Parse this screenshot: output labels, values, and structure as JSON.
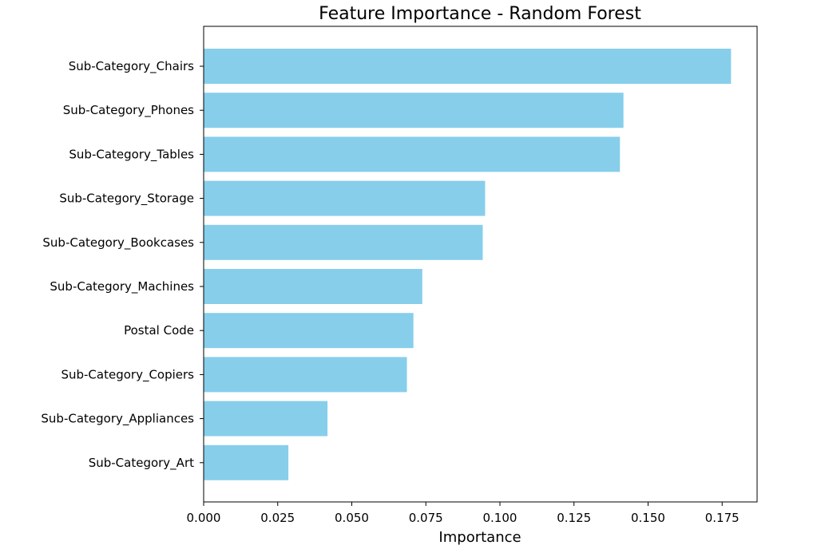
{
  "chart_data": {
    "type": "bar",
    "orientation": "horizontal",
    "title": "Feature Importance - Random Forest",
    "xlabel": "Importance",
    "ylabel": "",
    "xlim": [
      0,
      0.1868
    ],
    "xticks": [
      0.0,
      0.025,
      0.05,
      0.075,
      0.1,
      0.125,
      0.15,
      0.175
    ],
    "xtick_labels": [
      "0.000",
      "0.025",
      "0.050",
      "0.075",
      "0.100",
      "0.125",
      "0.150",
      "0.175"
    ],
    "categories": [
      "Sub-Category_Chairs",
      "Sub-Category_Phones",
      "Sub-Category_Tables",
      "Sub-Category_Storage",
      "Sub-Category_Bookcases",
      "Sub-Category_Machines",
      "Postal Code",
      "Sub-Category_Copiers",
      "Sub-Category_Appliances",
      "Sub-Category_Art"
    ],
    "values": [
      0.178,
      0.1417,
      0.1405,
      0.095,
      0.0942,
      0.0738,
      0.0708,
      0.0686,
      0.0418,
      0.0286
    ],
    "bar_color": "#87ceeb",
    "grid": false
  }
}
